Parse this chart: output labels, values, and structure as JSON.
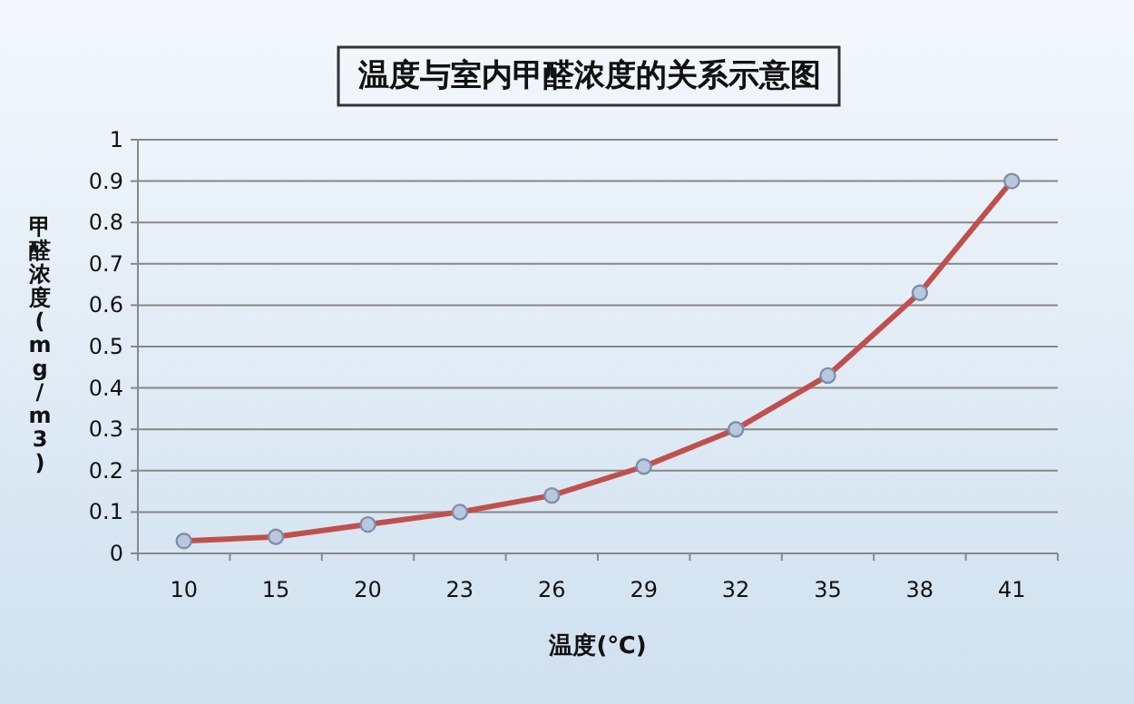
{
  "chart_data": {
    "type": "line",
    "title": "温度与室内甲醛浓度的关系示意图",
    "xlabel": "温度(℃)",
    "ylabel": "甲醛浓度(mg/m3)",
    "categories": [
      "10",
      "15",
      "20",
      "23",
      "26",
      "29",
      "32",
      "35",
      "38",
      "41"
    ],
    "values": [
      0.03,
      0.04,
      0.07,
      0.1,
      0.14,
      0.21,
      0.3,
      0.43,
      0.63,
      0.9
    ],
    "color": "#c0504d",
    "ylim": [
      0,
      1
    ],
    "yticks": [
      0,
      0.1,
      0.2,
      0.3,
      0.4,
      0.5,
      0.6,
      0.7,
      0.8,
      0.9,
      1
    ],
    "grid": "y",
    "marker": "circle",
    "line_style": "solid"
  }
}
